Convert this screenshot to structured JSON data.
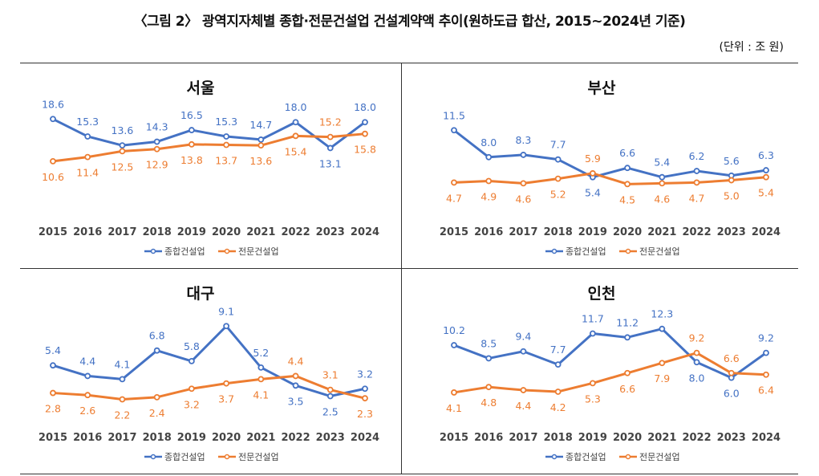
{
  "title": "〈그림 2〉 광역지자체별 종합·전문건설업 건설계약액 추이(원하도급 합산, 2015~2024년 기준)",
  "unit": "(단위 : 조 원)",
  "colors": {
    "general": "#4472C4",
    "specialty": "#ED7D31"
  },
  "chart_data": [
    {
      "type": "line",
      "title": "서울",
      "categories": [
        "2015",
        "2016",
        "2017",
        "2018",
        "2019",
        "2020",
        "2021",
        "2022",
        "2023",
        "2024"
      ],
      "ylim": [
        1.6,
        19.1
      ],
      "grid": false,
      "legend": "bottom",
      "series": [
        {
          "name": "종합건설업",
          "values": [
            18.6,
            15.3,
            13.6,
            14.3,
            16.5,
            15.3,
            14.7,
            18.0,
            13.1,
            18.0
          ]
        },
        {
          "name": "전문건설업",
          "values": [
            10.6,
            11.4,
            12.5,
            12.9,
            13.8,
            13.7,
            13.6,
            15.4,
            15.2,
            15.8
          ]
        }
      ]
    },
    {
      "type": "line",
      "title": "부산",
      "categories": [
        "2015",
        "2016",
        "2017",
        "2018",
        "2019",
        "2020",
        "2021",
        "2022",
        "2023",
        "2024"
      ],
      "ylim": [
        1.3,
        13.3
      ],
      "grid": false,
      "legend": "bottom",
      "series": [
        {
          "name": "종합건설업",
          "values": [
            11.5,
            8.0,
            8.3,
            7.7,
            5.4,
            6.6,
            5.4,
            6.2,
            5.6,
            6.3
          ]
        },
        {
          "name": "전문건설업",
          "values": [
            4.7,
            4.9,
            4.6,
            5.2,
            5.9,
            4.5,
            4.6,
            4.7,
            5.0,
            5.4
          ]
        }
      ]
    },
    {
      "type": "line",
      "title": "대구",
      "categories": [
        "2015",
        "2016",
        "2017",
        "2018",
        "2019",
        "2020",
        "2021",
        "2022",
        "2023",
        "2024"
      ],
      "ylim": [
        0.8,
        9.5
      ],
      "grid": false,
      "legend": "bottom",
      "series": [
        {
          "name": "종합건설업",
          "values": [
            5.4,
            4.4,
            4.1,
            6.8,
            5.8,
            9.1,
            5.2,
            3.5,
            2.5,
            3.2
          ]
        },
        {
          "name": "전문건설업",
          "values": [
            2.8,
            2.6,
            2.2,
            2.4,
            3.2,
            3.7,
            4.1,
            4.4,
            3.1,
            2.3
          ]
        }
      ]
    },
    {
      "type": "line",
      "title": "인천",
      "categories": [
        "2015",
        "2016",
        "2017",
        "2018",
        "2019",
        "2020",
        "2021",
        "2022",
        "2023",
        "2024"
      ],
      "ylim": [
        1.3,
        13.2
      ],
      "grid": false,
      "legend": "bottom",
      "series": [
        {
          "name": "종합건설업",
          "values": [
            10.2,
            8.5,
            9.4,
            7.7,
            11.7,
            11.2,
            12.3,
            8.0,
            6.0,
            9.2
          ]
        },
        {
          "name": "전문건설업",
          "values": [
            4.1,
            4.8,
            4.4,
            4.2,
            5.3,
            6.6,
            7.9,
            9.2,
            6.6,
            6.4
          ]
        }
      ]
    }
  ]
}
